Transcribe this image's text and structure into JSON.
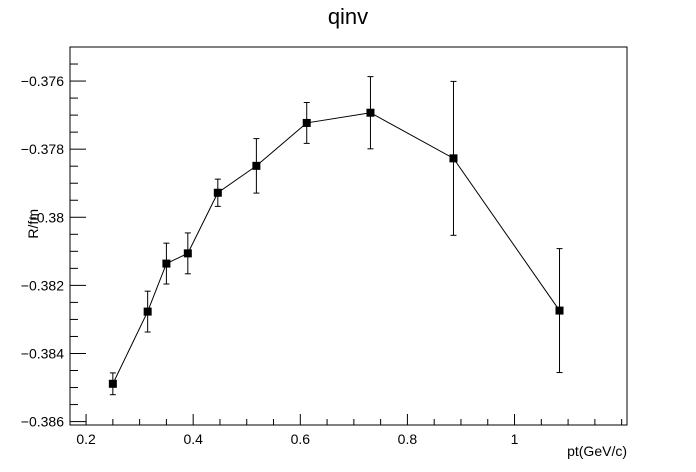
{
  "chart_data": {
    "type": "scatter",
    "title": "qinv",
    "xlabel": "pt(GeV/c)",
    "ylabel": "R/fm",
    "xlim": [
      0.17,
      1.21
    ],
    "ylim": [
      -0.3861,
      -0.375
    ],
    "x_ticks": [
      0.2,
      0.4,
      0.6,
      0.8,
      1.0
    ],
    "x_tick_labels": [
      "0.2",
      "0.4",
      "0.6",
      "0.8",
      "1"
    ],
    "y_ticks": [
      -0.386,
      -0.384,
      -0.382,
      -0.38,
      -0.378,
      -0.376
    ],
    "y_tick_labels": [
      "−0.386",
      "−0.384",
      "−0.382",
      "−0.38",
      "−0.378",
      "−0.376"
    ],
    "grid": false,
    "legend": "none",
    "series": [
      {
        "connected": true,
        "marker": "square",
        "color": "#000000",
        "x": [
          0.25,
          0.315,
          0.35,
          0.39,
          0.446,
          0.518,
          0.612,
          0.731,
          0.886,
          1.084
        ],
        "y": [
          -0.38489,
          -0.38277,
          -0.38136,
          -0.38106,
          -0.37928,
          -0.37849,
          -0.37723,
          -0.37693,
          -0.37827,
          -0.38274
        ],
        "err": [
          0.00032,
          0.0006,
          0.0006,
          0.0006,
          0.0004,
          0.0008,
          0.0006,
          0.00106,
          0.00226,
          0.00182
        ]
      }
    ]
  }
}
